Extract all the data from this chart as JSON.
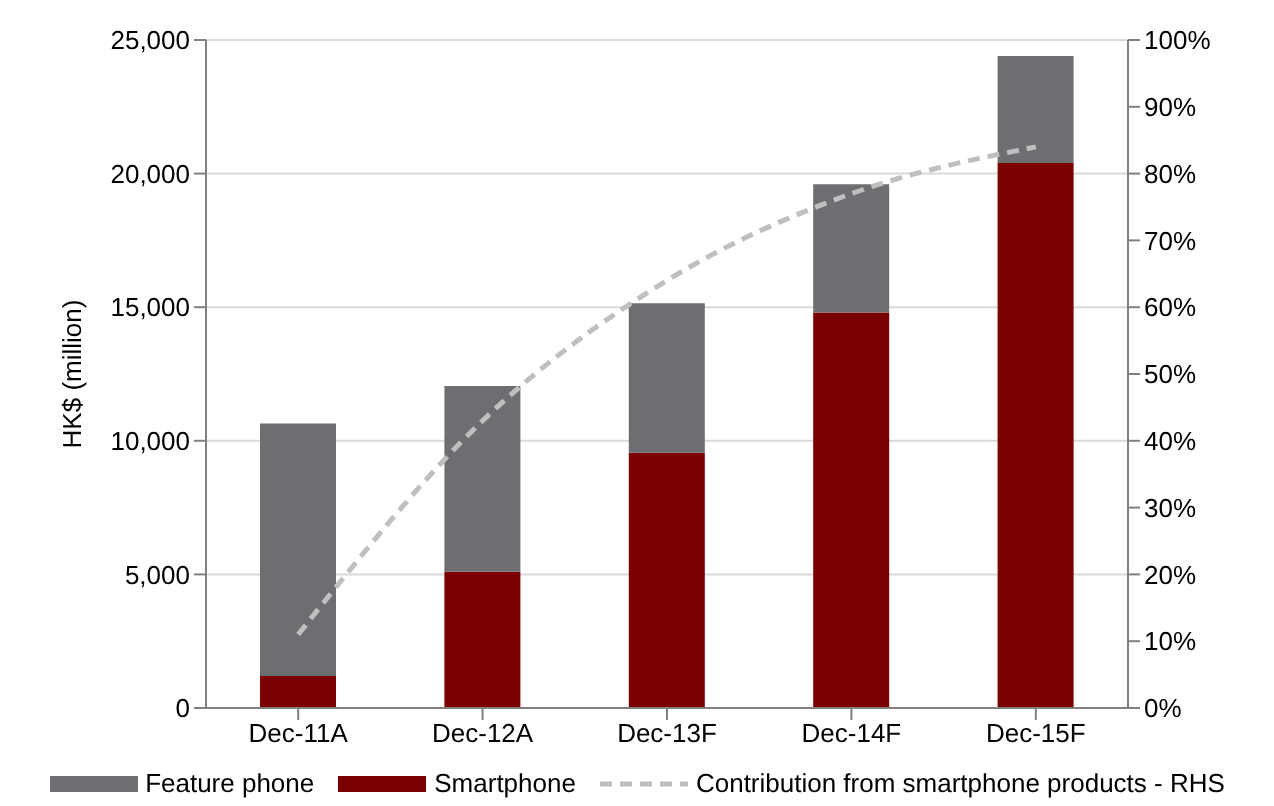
{
  "chart_data": {
    "type": "bar",
    "stacked": true,
    "ylabel": "HK$ (million)",
    "categories": [
      "Dec-11A",
      "Dec-12A",
      "Dec-13F",
      "Dec-14F",
      "Dec-15F"
    ],
    "series": [
      {
        "name": "Smartphone",
        "color": "#7b0000",
        "values": [
          1200,
          5100,
          9550,
          14800,
          20400
        ]
      },
      {
        "name": "Feature phone",
        "color": "#6d6e71",
        "values": [
          9450,
          6950,
          5600,
          4800,
          4000
        ]
      },
      {
        "name": "Contribution from smartphone products - RHS",
        "type": "line",
        "axis": "y2",
        "color": "#bfbfbf",
        "line_style": "dashed",
        "marker": "none",
        "values": [
          11,
          43,
          64,
          77,
          84
        ]
      }
    ],
    "ylim": [
      0,
      25000
    ],
    "yticks": [
      0,
      {
        "value": 5000,
        "label": "5,000"
      },
      {
        "value": 10000,
        "label": "10,000"
      },
      {
        "value": 15000,
        "label": "15,000"
      },
      {
        "value": 20000,
        "label": "20,000"
      },
      {
        "value": 25000,
        "label": "25,000"
      }
    ],
    "y2lim": [
      0,
      100
    ],
    "y2ticks": [
      {
        "value": 0,
        "label": "0%"
      },
      {
        "value": 10,
        "label": "10%"
      },
      {
        "value": 20,
        "label": "20%"
      },
      {
        "value": 30,
        "label": "30%"
      },
      {
        "value": 40,
        "label": "40%"
      },
      {
        "value": 50,
        "label": "50%"
      },
      {
        "value": 60,
        "label": "60%"
      },
      {
        "value": 70,
        "label": "70%"
      },
      {
        "value": 80,
        "label": "80%"
      },
      {
        "value": 90,
        "label": "90%"
      },
      {
        "value": 100,
        "label": "100%"
      }
    ],
    "grid": "y",
    "legend": "bottom"
  }
}
